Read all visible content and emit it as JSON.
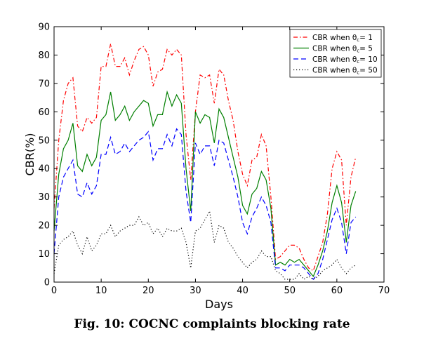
{
  "caption": "Fig. 10: COCNC complaints blocking rate",
  "chart_data": {
    "type": "line",
    "title": "",
    "xlabel": "Days",
    "ylabel": "CBR(%)",
    "xlim": [
      0,
      70
    ],
    "ylim": [
      0,
      90
    ],
    "xticks": [
      0,
      10,
      20,
      30,
      40,
      50,
      60,
      70
    ],
    "yticks": [
      0,
      10,
      20,
      30,
      40,
      50,
      60,
      70,
      80,
      90
    ],
    "grid": false,
    "legend_position": "top-right",
    "x": [
      0,
      1,
      2,
      3,
      4,
      5,
      6,
      7,
      8,
      9,
      10,
      11,
      12,
      13,
      14,
      15,
      16,
      17,
      18,
      19,
      20,
      21,
      22,
      23,
      24,
      25,
      26,
      27,
      28,
      29,
      30,
      31,
      32,
      33,
      34,
      35,
      36,
      37,
      38,
      39,
      40,
      41,
      42,
      43,
      44,
      45,
      46,
      47,
      48,
      49,
      50,
      51,
      52,
      53,
      54,
      55,
      56,
      57,
      58,
      59,
      60,
      61,
      62,
      63,
      64
    ],
    "series": [
      {
        "name": "CBR when θ",
        "name_sub": "c",
        "name_suffix": "= 1",
        "color": "#ff0000",
        "style": "dashdot",
        "values": [
          26,
          50,
          64,
          70,
          72,
          55,
          53,
          58,
          56,
          58,
          76,
          76,
          84,
          76,
          76,
          79,
          73,
          78,
          82,
          83,
          80,
          69,
          74,
          75,
          82,
          80,
          82,
          80,
          52,
          36,
          60,
          73,
          72,
          73,
          63,
          75,
          73,
          64,
          57,
          46,
          38,
          34,
          43,
          44,
          52,
          48,
          30,
          8,
          9,
          11,
          13,
          13,
          12,
          8,
          5,
          4,
          9,
          14,
          24,
          40,
          46,
          43,
          20,
          37,
          44
        ]
      },
      {
        "name": "CBR when θ",
        "name_sub": "c",
        "name_suffix": "= 5",
        "color": "#007f00",
        "style": "solid",
        "values": [
          18,
          38,
          47,
          50,
          56,
          41,
          39,
          45,
          41,
          44,
          57,
          59,
          67,
          57,
          59,
          62,
          57,
          60,
          62,
          64,
          63,
          55,
          59,
          59,
          67,
          62,
          66,
          63,
          40,
          25,
          60,
          56,
          59,
          58,
          49,
          61,
          58,
          51,
          44,
          37,
          27,
          24,
          31,
          33,
          39,
          36,
          26,
          6,
          7,
          6,
          8,
          7,
          8,
          6,
          4,
          2,
          6,
          11,
          18,
          28,
          34,
          28,
          14,
          27,
          32
        ]
      },
      {
        "name": "CBR when θ",
        "name_sub": "c",
        "name_suffix": "= 10",
        "color": "#0000ff",
        "style": "dashed",
        "values": [
          10,
          30,
          37,
          40,
          43,
          31,
          30,
          35,
          31,
          34,
          45,
          45,
          51,
          45,
          46,
          49,
          46,
          48,
          50,
          51,
          53,
          43,
          47,
          47,
          52,
          48,
          54,
          52,
          32,
          21,
          49,
          45,
          48,
          48,
          41,
          50,
          49,
          43,
          37,
          30,
          21,
          17,
          23,
          26,
          30,
          27,
          21,
          5,
          5,
          4,
          6,
          6,
          6,
          5,
          3,
          1,
          3,
          8,
          15,
          22,
          26,
          21,
          10,
          21,
          23
        ]
      },
      {
        "name": "CBR when θ",
        "name_sub": "c",
        "name_suffix": "= 50",
        "color": "#000000",
        "style": "dotted",
        "values": [
          3,
          13,
          15,
          16,
          18,
          13,
          10,
          16,
          11,
          13,
          17,
          17,
          20,
          16,
          18,
          19,
          20,
          20,
          23,
          20,
          21,
          17,
          19,
          16,
          19,
          18,
          18,
          19,
          14,
          5,
          18,
          19,
          22,
          25,
          14,
          20,
          19,
          14,
          12,
          9,
          7,
          5,
          7,
          8,
          11,
          9,
          9,
          4,
          3,
          1,
          1,
          1,
          3,
          1,
          2,
          1,
          2,
          4,
          5,
          6,
          8,
          5,
          3,
          5,
          6
        ]
      }
    ]
  }
}
